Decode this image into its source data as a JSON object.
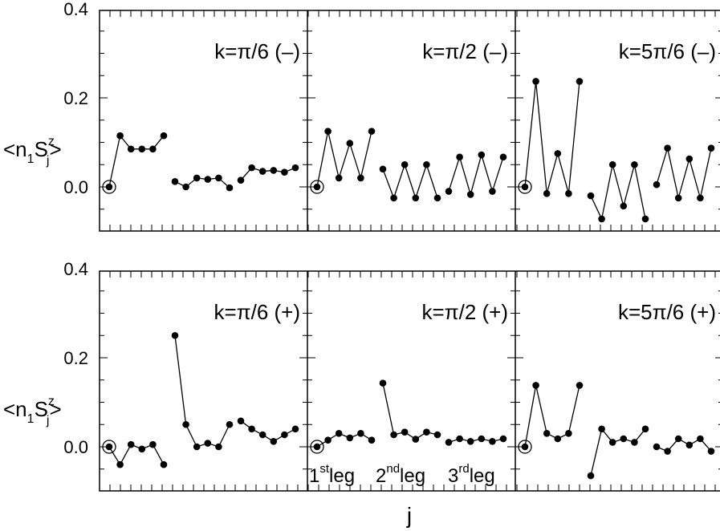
{
  "chart_data": {
    "type": "line",
    "xlabel": "j",
    "ylabel": {
      "base": "<n",
      "sub1": "1",
      "mid": "S",
      "sup": "z",
      "sub2": "j",
      "end": ">"
    },
    "ylim": [
      -0.1,
      0.4
    ],
    "yticks": [
      "0.4",
      "0.2",
      "0.0"
    ],
    "leg_labels": [
      {
        "num": "1",
        "sup": "st",
        "text": "leg"
      },
      {
        "num": "2",
        "sup": "nd",
        "text": "leg"
      },
      {
        "num": "3",
        "sup": "rd",
        "text": "leg"
      }
    ],
    "panels": [
      {
        "row": 0,
        "col": 0,
        "label": "k=π/6 (–)",
        "legs": [
          [
            0.0,
            0.115,
            0.085,
            0.085,
            0.085,
            0.115
          ],
          [
            0.012,
            0.0,
            0.02,
            0.017,
            0.02,
            -0.002
          ],
          [
            0.015,
            0.043,
            0.035,
            0.037,
            0.033,
            0.043
          ]
        ]
      },
      {
        "row": 0,
        "col": 1,
        "label": "k=π/2 (–)",
        "legs": [
          [
            0.0,
            0.125,
            0.02,
            0.098,
            0.02,
            0.125
          ],
          [
            0.04,
            -0.025,
            0.05,
            -0.025,
            0.05,
            -0.025
          ],
          [
            -0.01,
            0.067,
            -0.017,
            0.072,
            -0.01,
            0.067
          ]
        ]
      },
      {
        "row": 0,
        "col": 2,
        "label": "k=5π/6 (–)",
        "legs": [
          [
            0.0,
            0.237,
            -0.015,
            0.075,
            -0.015,
            0.237
          ],
          [
            -0.02,
            -0.072,
            0.05,
            -0.043,
            0.05,
            -0.072
          ],
          [
            0.005,
            0.087,
            -0.025,
            0.063,
            -0.025,
            0.087
          ]
        ]
      },
      {
        "row": 1,
        "col": 0,
        "label": "k=π/6 (+)",
        "legs": [
          [
            0.0,
            -0.04,
            0.005,
            -0.005,
            0.005,
            -0.04
          ],
          [
            0.25,
            0.05,
            0.0,
            0.008,
            0.0,
            0.05
          ],
          [
            0.058,
            0.04,
            0.027,
            0.012,
            0.027,
            0.04
          ]
        ]
      },
      {
        "row": 1,
        "col": 1,
        "label": "k=π/2 (+)",
        "legs": [
          [
            0.0,
            0.015,
            0.03,
            0.02,
            0.03,
            0.015
          ],
          [
            0.143,
            0.027,
            0.033,
            0.017,
            0.033,
            0.027
          ],
          [
            0.01,
            0.018,
            0.012,
            0.018,
            0.012,
            0.018
          ]
        ]
      },
      {
        "row": 1,
        "col": 2,
        "label": "k=5π/6 (+)",
        "legs": [
          [
            0.0,
            0.138,
            0.03,
            0.018,
            0.03,
            0.138
          ],
          [
            -0.065,
            0.04,
            0.01,
            0.018,
            0.01,
            0.04
          ],
          [
            0.0,
            -0.01,
            0.018,
            0.004,
            0.018,
            -0.01
          ]
        ]
      }
    ]
  }
}
